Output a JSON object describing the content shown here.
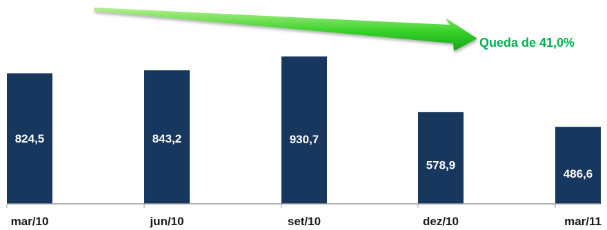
{
  "chart_data": {
    "type": "bar",
    "categories": [
      "mar/10",
      "jun/10",
      "set/10",
      "dez/10",
      "mar/11"
    ],
    "values": [
      824.5,
      843.2,
      930.7,
      578.9,
      486.6
    ],
    "value_labels": [
      "824,5",
      "843,2",
      "930,7",
      "578,9",
      "486,6"
    ],
    "title": "",
    "xlabel": "",
    "ylabel": "",
    "grid": false,
    "legend": "none",
    "annotation": {
      "text": "Queda de 41,0%",
      "from_category": "mar/10",
      "to_category": "mar/11"
    }
  },
  "colors": {
    "bar": "#17375e",
    "bar_label": "#ffffff",
    "axis": "#9a9a9a",
    "tick_label": "#1a1a1a",
    "annotation": "#00b050",
    "arrow_light": "#b6f08c",
    "arrow_mid": "#37d12a",
    "arrow_dark": "#16a31a"
  }
}
